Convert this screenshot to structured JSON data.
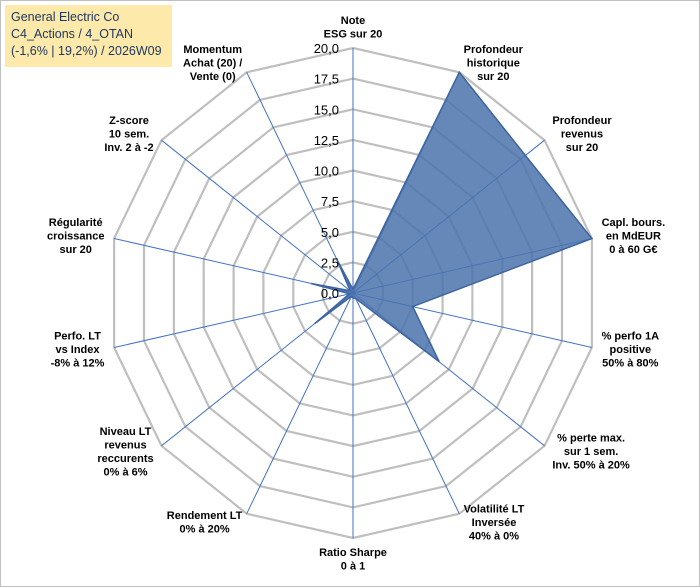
{
  "title_box": {
    "line1": "General Electric Co",
    "line2": "C4_Actions / 4_OTAN",
    "line3": "(-1,6% | 19,2%) / 2026W09"
  },
  "colors": {
    "title_bg": "#fde9a9",
    "title_text": "#1f3864",
    "grid": "#bfbfbf",
    "spoke": "#4472c4",
    "fill": "#4a73ad",
    "stroke": "#3d64a0"
  },
  "chart_data": {
    "type": "radar",
    "rmin": 0,
    "rmax": 20,
    "tick_labels": [
      "0,0",
      "2,5",
      "5,0",
      "7,5",
      "10,0",
      "12,5",
      "15,0",
      "17,5",
      "20,0"
    ],
    "categories": [
      "Note|ESG sur 20",
      "Profondeur|historique|sur 20",
      "Profondeur|revenus|sur 20",
      "Capl. bours.|en MdEUR|0 à 60 G€",
      "% perfo 1A|positive|50% à 80%",
      "% perte max.|sur 1 sem.|Inv. 50% à 20%",
      "Volatilité LT|Inversée|40% à 0%",
      "Ratio Sharpe|0 à 1",
      "Rendement LT|0% à 20%",
      "Niveau LT|revenus|reccurents|0% à 6%",
      "Perfo. LT|vs Index|-8% à 12%",
      "Régularité|croissance|sur 20",
      "Z-score|10 sem.|Inv. 2 à -2",
      "Momentum|Achat (20) /|Vente (0)"
    ],
    "values": [
      0.3,
      20,
      18,
      20,
      5,
      9,
      0.5,
      0.4,
      0.3,
      4,
      0.3,
      3.5,
      0.3,
      3
    ],
    "grid": true,
    "legend": "none"
  }
}
